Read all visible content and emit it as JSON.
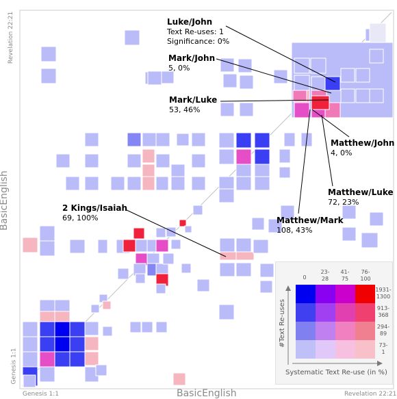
{
  "axes": {
    "x_label": "BasicEnglish",
    "y_label": "BasicEnglish",
    "x_start": "Genesis 1:1",
    "x_end": "Revelation 22:21",
    "y_start": "Genesis 1:1",
    "y_end": "Revelation 22:21"
  },
  "colors": {
    "background": "#ffffff",
    "grid_lines": "#ffffff",
    "low_reuse": "#b9bcf8",
    "blue_mid": "#8487f3",
    "blue_high": "#3a3ff3",
    "blue_max": "#0000f0",
    "pink_light": "#f6b6c0",
    "pink_mid": "#f07ab8",
    "magenta": "#e64ec7",
    "red": "#f0213a"
  },
  "annotations": [
    {
      "title": "Luke/John",
      "lines": [
        "Text Re-uses: 1",
        "Significance: 0%"
      ]
    },
    {
      "title": "Mark/John",
      "lines": [
        "5, 0%"
      ]
    },
    {
      "title": "Mark/Luke",
      "lines": [
        "53, 46%"
      ]
    },
    {
      "title": "Matthew/John",
      "lines": [
        "4, 0%"
      ]
    },
    {
      "title": "Matthew/Luke",
      "lines": [
        "72, 23%"
      ]
    },
    {
      "title": "Matthew/Mark",
      "lines": [
        "108, 43%"
      ]
    },
    {
      "title": "2 Kings/Isaiah",
      "lines": [
        "69, 100%"
      ]
    }
  ],
  "legend": {
    "x_title": "Systematic Text Re-use (in %)",
    "y_title": "#Text Re-uses",
    "columns": [
      "0",
      "23-\n28",
      "41-\n75",
      "76-\n100"
    ],
    "rows": [
      "1931-\n1300",
      "913-\n368",
      "294-\n89",
      "73-\n1"
    ],
    "cell_colors": [
      [
        "#0000f0",
        "#8a00f0",
        "#cc00cc",
        "#f00000"
      ],
      [
        "#4040f0",
        "#a040f0",
        "#e040b0",
        "#f04070"
      ],
      [
        "#8080f0",
        "#c080f0",
        "#f080c0",
        "#f08090"
      ],
      [
        "#c0c0f8",
        "#e0c8f8",
        "#f8c0e0",
        "#f8c0c8"
      ]
    ]
  }
}
